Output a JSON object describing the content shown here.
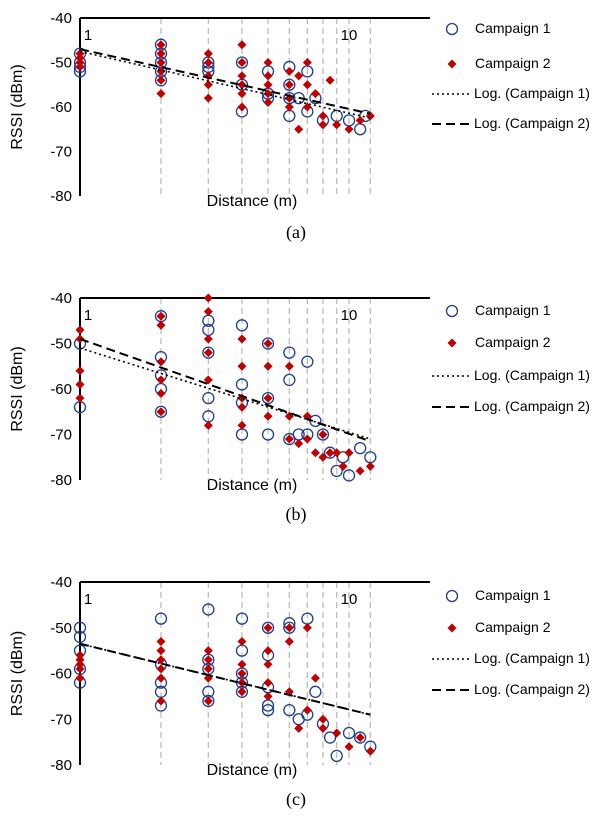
{
  "figure": {
    "panels": [
      {
        "caption": "(a)"
      },
      {
        "caption": "(b)"
      },
      {
        "caption": "(c)"
      }
    ]
  },
  "chart_data": [
    {
      "type": "scatter",
      "xlabel": "Distance (m)",
      "ylabel": "RSSI (dBm)",
      "xscale": "log",
      "xlim": [
        1,
        20
      ],
      "ylim": [
        -80,
        -40
      ],
      "yticks": [
        -40,
        -50,
        -60,
        -70,
        -80
      ],
      "xticks": [
        1,
        10
      ],
      "grid": "vertical dashed lines at measurement distances",
      "legend_position": "right",
      "measurement_distances": [
        1,
        2,
        3,
        4,
        5,
        6,
        7,
        8,
        9,
        10,
        12
      ],
      "series": [
        {
          "name": "Campaign 1",
          "marker": "open-circle",
          "color": "#1f3d8f",
          "x": [
            1,
            1,
            1,
            1,
            2,
            2,
            2,
            2,
            2,
            3,
            3,
            3,
            4,
            4,
            4,
            5,
            5,
            5,
            6,
            6,
            6,
            6,
            6.5,
            7,
            7,
            7.5,
            8,
            9,
            10,
            11,
            11.5
          ],
          "y": [
            -48,
            -50,
            -51,
            -52,
            -46,
            -48,
            -50,
            -52,
            -54,
            -50,
            -51,
            -52,
            -50,
            -55,
            -61,
            -52,
            -57,
            -58,
            -51,
            -55,
            -58,
            -62,
            -58,
            -52,
            -61,
            -58,
            -63,
            -62,
            -63,
            -65,
            -62
          ]
        },
        {
          "name": "Campaign 2",
          "marker": "filled-diamond",
          "color": "#c00000",
          "x": [
            1,
            1,
            1,
            1,
            2,
            2,
            2,
            2,
            2,
            2,
            3,
            3,
            3,
            3,
            3,
            4,
            4,
            4,
            4,
            4,
            4,
            5,
            5,
            5,
            5,
            5,
            6,
            6,
            6,
            6,
            6.5,
            6.5,
            7,
            7,
            7,
            7.5,
            8,
            8,
            8.5,
            9,
            10,
            11,
            12
          ],
          "y": [
            -48,
            -49,
            -50,
            -51,
            -46,
            -48,
            -50,
            -52,
            -54,
            -57,
            -48,
            -50,
            -53,
            -55,
            -58,
            -46,
            -50,
            -53,
            -55,
            -57,
            -60,
            -50,
            -53,
            -55,
            -57,
            -59,
            -52,
            -55,
            -58,
            -60,
            -53,
            -65,
            -50,
            -55,
            -60,
            -57,
            -62,
            -64,
            -54,
            -64,
            -65,
            -63,
            -62
          ]
        },
        {
          "name": "Log. (Campaign 1)",
          "line": "dotted",
          "color": "#000000",
          "x": [
            1,
            12
          ],
          "y": [
            -47.5,
            -62.5
          ]
        },
        {
          "name": "Log. (Campaign 2)",
          "line": "dashed",
          "color": "#000000",
          "x": [
            1,
            12
          ],
          "y": [
            -47,
            -61.5
          ]
        }
      ]
    },
    {
      "type": "scatter",
      "xlabel": "Distance (m)",
      "ylabel": "RSSI (dBm)",
      "xscale": "log",
      "xlim": [
        1,
        20
      ],
      "ylim": [
        -80,
        -40
      ],
      "yticks": [
        -40,
        -50,
        -60,
        -70,
        -80
      ],
      "xticks": [
        1,
        10
      ],
      "grid": "vertical dashed lines at measurement distances",
      "legend_position": "right",
      "measurement_distances": [
        1,
        2,
        3,
        4,
        5,
        6,
        7,
        8,
        9,
        10,
        12
      ],
      "series": [
        {
          "name": "Campaign 1",
          "marker": "open-circle",
          "color": "#1f3d8f",
          "x": [
            1,
            1,
            2,
            2,
            2,
            2,
            2,
            3,
            3,
            3,
            3,
            3,
            4,
            4,
            4,
            4,
            5,
            5,
            5,
            6,
            6,
            6,
            6.5,
            7,
            7,
            7.5,
            8,
            8.5,
            9,
            9.5,
            10,
            11,
            12
          ],
          "y": [
            -50,
            -64,
            -44,
            -53,
            -57,
            -60,
            -65,
            -45,
            -47,
            -52,
            -62,
            -66,
            -46,
            -59,
            -63,
            -70,
            -50,
            -62,
            -70,
            -52,
            -58,
            -71,
            -70,
            -54,
            -70,
            -67,
            -70,
            -74,
            -78,
            -75,
            -79,
            -73,
            -75
          ]
        },
        {
          "name": "Campaign 2",
          "marker": "filled-diamond",
          "color": "#c00000",
          "x": [
            1,
            1,
            1,
            1,
            1,
            2,
            2,
            2,
            2,
            2,
            2,
            3,
            3,
            3,
            3,
            3,
            3,
            4,
            4,
            4,
            4,
            4,
            5,
            5,
            5,
            5,
            6,
            6,
            6,
            6.5,
            7,
            7,
            7.5,
            8,
            8,
            8.5,
            9,
            9.5,
            10,
            11,
            12
          ],
          "y": [
            -47,
            -49,
            -56,
            -59,
            -62,
            -44,
            -46,
            -54,
            -58,
            -61,
            -65,
            -40,
            -43,
            -49,
            -52,
            -58,
            -68,
            -49,
            -55,
            -62,
            -64,
            -68,
            -50,
            -55,
            -62,
            -66,
            -55,
            -66,
            -71,
            -72,
            -66,
            -71,
            -74,
            -70,
            -75,
            -74,
            -74,
            -77,
            -74,
            -78,
            -77
          ]
        },
        {
          "name": "Log. (Campaign 1)",
          "line": "dotted",
          "color": "#000000",
          "x": [
            1,
            12
          ],
          "y": [
            -51,
            -71
          ]
        },
        {
          "name": "Log. (Campaign 2)",
          "line": "dashed",
          "color": "#000000",
          "x": [
            1,
            12
          ],
          "y": [
            -49,
            -71.5
          ]
        }
      ]
    },
    {
      "type": "scatter",
      "xlabel": "Distance (m)",
      "ylabel": "RSSI (dBm)",
      "xscale": "log",
      "xlim": [
        1,
        20
      ],
      "ylim": [
        -80,
        -40
      ],
      "yticks": [
        -40,
        -50,
        -60,
        -70,
        -80
      ],
      "xticks": [
        1,
        10
      ],
      "grid": "vertical dashed lines at measurement distances",
      "legend_position": "right",
      "measurement_distances": [
        1,
        2,
        3,
        4,
        5,
        6,
        7,
        8,
        9,
        10,
        12
      ],
      "series": [
        {
          "name": "Campaign 1",
          "marker": "open-circle",
          "color": "#1f3d8f",
          "x": [
            1,
            1,
            1,
            1,
            1,
            2,
            2,
            2,
            2,
            2,
            3,
            3,
            3,
            3,
            3,
            4,
            4,
            4,
            4,
            4,
            5,
            5,
            5,
            5,
            5,
            6,
            6,
            6,
            6.5,
            7,
            7,
            7.5,
            8,
            8.5,
            9,
            10,
            11,
            12
          ],
          "y": [
            -50,
            -52,
            -55,
            -59,
            -62,
            -48,
            -58,
            -62,
            -64,
            -67,
            -46,
            -57,
            -59,
            -64,
            -66,
            -48,
            -55,
            -60,
            -62,
            -64,
            -50,
            -56,
            -63,
            -67,
            -68,
            -49,
            -50,
            -68,
            -70,
            -48,
            -69,
            -64,
            -71,
            -74,
            -78,
            -73,
            -74,
            -76
          ]
        },
        {
          "name": "Campaign 2",
          "marker": "filled-diamond",
          "color": "#c00000",
          "x": [
            1,
            1,
            1,
            1,
            1,
            2,
            2,
            2,
            2,
            2,
            2,
            3,
            3,
            3,
            3,
            3,
            4,
            4,
            4,
            4,
            4,
            5,
            5,
            5,
            5,
            5,
            6,
            6,
            6,
            6.5,
            7,
            7,
            7.5,
            8,
            8,
            9,
            10,
            11,
            12
          ],
          "y": [
            -56,
            -57,
            -58,
            -59,
            -61,
            -53,
            -55,
            -57,
            -59,
            -61,
            -66,
            -55,
            -57,
            -59,
            -61,
            -66,
            -53,
            -58,
            -60,
            -62,
            -64,
            -50,
            -55,
            -58,
            -62,
            -65,
            -50,
            -53,
            -64,
            -72,
            -50,
            -68,
            -61,
            -70,
            -72,
            -73,
            -76,
            -74,
            -77
          ]
        },
        {
          "name": "Log. (Campaign 1)",
          "line": "dotted",
          "color": "#000000",
          "x": [
            1,
            12
          ],
          "y": [
            -53.5,
            -69
          ]
        },
        {
          "name": "Log. (Campaign 2)",
          "line": "dashed",
          "color": "#000000",
          "x": [
            1,
            12
          ],
          "y": [
            -53.5,
            -69
          ]
        }
      ]
    }
  ]
}
